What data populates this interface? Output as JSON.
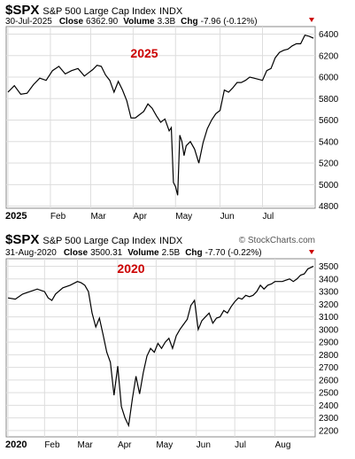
{
  "chart_data": [
    {
      "type": "line",
      "symbol": "$SPX",
      "name": "S&P 500 Large Cap Index",
      "exchange": "INDX",
      "date": "30-Jul-2025",
      "close_label": "Close",
      "close": "6362.90",
      "volume_label": "Volume",
      "volume": "3.3B",
      "chg_label": "Chg",
      "chg": "-7.96 (-0.12%)",
      "annotation": "2025",
      "brand": "",
      "x_ticks": [
        "2025",
        "Feb",
        "Mar",
        "Apr",
        "May",
        "Jun",
        "Jul"
      ],
      "y_ticks": [
        "6400",
        "6200",
        "6000",
        "5800",
        "5600",
        "5400",
        "5200",
        "5000",
        "4800"
      ],
      "ylim": [
        4780,
        6470
      ],
      "x_range": [
        0,
        144
      ],
      "dates_start": "2025-01-02",
      "series": [
        {
          "values": [
            [
              0,
              5860
            ],
            [
              3,
              5920
            ],
            [
              6,
              5840
            ],
            [
              9,
              5850
            ],
            [
              12,
              5930
            ],
            [
              15,
              5990
            ],
            [
              18,
              5970
            ],
            [
              21,
              6060
            ],
            [
              24,
              6100
            ],
            [
              27,
              6030
            ],
            [
              30,
              6060
            ],
            [
              33,
              6080
            ],
            [
              36,
              6010
            ],
            [
              38,
              6040
            ],
            [
              40,
              6070
            ],
            [
              42,
              6110
            ],
            [
              44,
              6100
            ],
            [
              46,
              6020
            ],
            [
              48,
              5970
            ],
            [
              50,
              5860
            ],
            [
              52,
              5960
            ],
            [
              54,
              5880
            ],
            [
              56,
              5780
            ],
            [
              58,
              5620
            ],
            [
              60,
              5620
            ],
            [
              62,
              5650
            ],
            [
              64,
              5680
            ],
            [
              66,
              5750
            ],
            [
              68,
              5710
            ],
            [
              70,
              5640
            ],
            [
              72,
              5580
            ],
            [
              74,
              5610
            ],
            [
              76,
              5500
            ],
            [
              77,
              5530
            ],
            [
              78,
              5020
            ],
            [
              79,
              4980
            ],
            [
              80,
              4900
            ],
            [
              81,
              5460
            ],
            [
              82,
              5400
            ],
            [
              83,
              5270
            ],
            [
              84,
              5360
            ],
            [
              86,
              5400
            ],
            [
              88,
              5330
            ],
            [
              90,
              5200
            ],
            [
              92,
              5390
            ],
            [
              94,
              5520
            ],
            [
              96,
              5600
            ],
            [
              98,
              5660
            ],
            [
              100,
              5690
            ],
            [
              102,
              5880
            ],
            [
              104,
              5860
            ],
            [
              106,
              5900
            ],
            [
              108,
              5950
            ],
            [
              110,
              5950
            ],
            [
              112,
              5970
            ],
            [
              114,
              6000
            ],
            [
              116,
              5990
            ],
            [
              118,
              5980
            ],
            [
              120,
              5970
            ],
            [
              122,
              6060
            ],
            [
              124,
              6080
            ],
            [
              126,
              6180
            ],
            [
              128,
              6230
            ],
            [
              130,
              6250
            ],
            [
              132,
              6260
            ],
            [
              134,
              6290
            ],
            [
              136,
              6310
            ],
            [
              138,
              6310
            ],
            [
              140,
              6390
            ],
            [
              142,
              6380
            ],
            [
              144,
              6362
            ]
          ]
        }
      ]
    },
    {
      "type": "line",
      "symbol": "$SPX",
      "name": "S&P 500 Large Cap Index",
      "exchange": "INDX",
      "date": "31-Aug-2020",
      "close_label": "Close",
      "close": "3500.31",
      "volume_label": "Volume",
      "volume": "2.5B",
      "chg_label": "Chg",
      "chg": "-7.70 (-0.22%)",
      "annotation": "2020",
      "brand": "© StockCharts.com",
      "x_ticks": [
        "2020",
        "Feb",
        "Mar",
        "Apr",
        "May",
        "Jun",
        "Jul",
        "Aug"
      ],
      "y_ticks": [
        "3500",
        "3400",
        "3300",
        "3200",
        "3100",
        "3000",
        "2900",
        "2800",
        "2700",
        "2600",
        "2500",
        "2400",
        "2300",
        "2200"
      ],
      "ylim": [
        2150,
        3560
      ],
      "x_range": [
        0,
        167
      ],
      "dates_start": "2020-01-02",
      "series": [
        {
          "values": [
            [
              0,
              3250
            ],
            [
              4,
              3240
            ],
            [
              8,
              3280
            ],
            [
              12,
              3300
            ],
            [
              16,
              3320
            ],
            [
              20,
              3300
            ],
            [
              22,
              3250
            ],
            [
              24,
              3230
            ],
            [
              26,
              3280
            ],
            [
              30,
              3330
            ],
            [
              34,
              3350
            ],
            [
              38,
              3380
            ],
            [
              40,
              3370
            ],
            [
              42,
              3350
            ],
            [
              44,
              3300
            ],
            [
              46,
              3130
            ],
            [
              48,
              3020
            ],
            [
              50,
              3090
            ],
            [
              52,
              2960
            ],
            [
              54,
              2820
            ],
            [
              56,
              2740
            ],
            [
              58,
              2480
            ],
            [
              60,
              2710
            ],
            [
              62,
              2390
            ],
            [
              64,
              2300
            ],
            [
              66,
              2240
            ],
            [
              68,
              2450
            ],
            [
              70,
              2630
            ],
            [
              72,
              2490
            ],
            [
              74,
              2660
            ],
            [
              76,
              2790
            ],
            [
              78,
              2850
            ],
            [
              80,
              2820
            ],
            [
              82,
              2890
            ],
            [
              84,
              2850
            ],
            [
              86,
              2900
            ],
            [
              88,
              2930
            ],
            [
              90,
              2850
            ],
            [
              92,
              2950
            ],
            [
              94,
              3000
            ],
            [
              96,
              3040
            ],
            [
              98,
              3080
            ],
            [
              100,
              3190
            ],
            [
              102,
              3230
            ],
            [
              104,
              3000
            ],
            [
              106,
              3070
            ],
            [
              108,
              3100
            ],
            [
              110,
              3130
            ],
            [
              112,
              3050
            ],
            [
              114,
              3090
            ],
            [
              116,
              3100
            ],
            [
              118,
              3150
            ],
            [
              120,
              3130
            ],
            [
              122,
              3180
            ],
            [
              124,
              3220
            ],
            [
              126,
              3250
            ],
            [
              128,
              3240
            ],
            [
              130,
              3270
            ],
            [
              132,
              3260
            ],
            [
              134,
              3270
            ],
            [
              136,
              3300
            ],
            [
              138,
              3350
            ],
            [
              140,
              3320
            ],
            [
              142,
              3350
            ],
            [
              144,
              3360
            ],
            [
              146,
              3380
            ],
            [
              148,
              3380
            ],
            [
              150,
              3380
            ],
            [
              152,
              3390
            ],
            [
              154,
              3400
            ],
            [
              156,
              3380
            ],
            [
              158,
              3400
            ],
            [
              160,
              3430
            ],
            [
              162,
              3440
            ],
            [
              164,
              3480
            ],
            [
              167,
              3500
            ]
          ]
        }
      ]
    }
  ]
}
